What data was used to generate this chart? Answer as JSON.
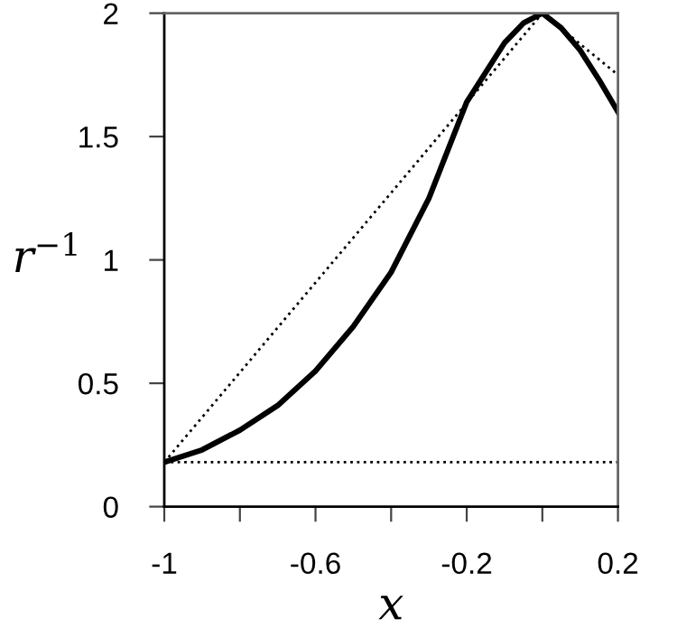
{
  "chart_data": {
    "type": "line",
    "xlabel": "x",
    "ylabel": "r$^{−1}$",
    "series": [
      {
        "color": "#000000",
        "line_style": "solid",
        "x": [
          -1,
          -0.9,
          -0.8,
          -0.7,
          -0.6,
          -0.5,
          -0.4,
          -0.3,
          -0.2,
          -0.1,
          -0.05,
          0,
          0.05,
          0.1,
          0.15,
          0.2
        ],
        "values": [
          0.18,
          0.23,
          0.31,
          0.41,
          0.55,
          0.73,
          0.95,
          1.25,
          1.64,
          1.88,
          1.96,
          2.0,
          1.94,
          1.85,
          1.73,
          1.6
        ]
      },
      {
        "color": "#000000",
        "line_style": "dotted",
        "x": [
          -1,
          0,
          0.2
        ],
        "values": [
          0.18,
          2.0,
          1.75
        ]
      }
    ],
    "ref_lines": [
      {
        "axis": "y",
        "value": 0.18,
        "color": "#000000",
        "line_style": "dotted"
      }
    ],
    "xlim": [
      -1,
      0.2
    ],
    "ylim": [
      0,
      2
    ],
    "xticks": [
      -1,
      {
        "value": -0.8,
        "label": null
      },
      -0.6,
      {
        "value": -0.4,
        "label": null
      },
      -0.2,
      {
        "value": 0,
        "label": null
      },
      0.2
    ],
    "yticks": [
      0,
      0.5,
      1,
      1.5,
      2
    ],
    "grid": false,
    "marker": "none"
  }
}
